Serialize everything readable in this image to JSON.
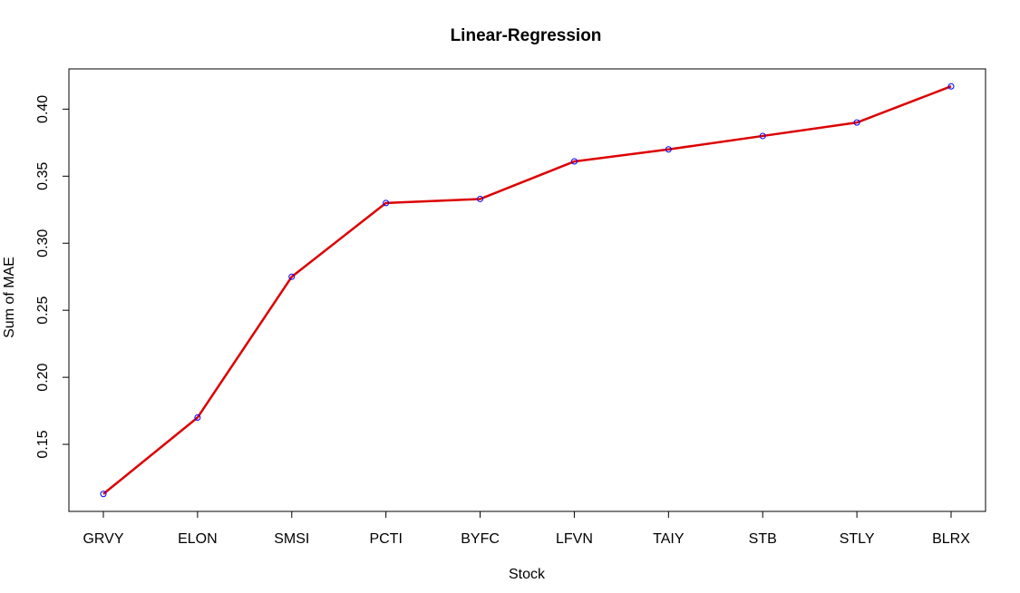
{
  "chart_data": {
    "type": "line",
    "title": "Linear-Regression",
    "xlabel": "Stock",
    "ylabel": "Sum of MAE",
    "categories": [
      "GRVY",
      "ELON",
      "SMSI",
      "PCTI",
      "BYFC",
      "LFVN",
      "TAIY",
      "STB",
      "STLY",
      "BLRX"
    ],
    "series": [
      {
        "values": [
          0.113,
          0.17,
          0.275,
          0.33,
          0.333,
          0.361,
          0.37,
          0.38,
          0.39,
          0.417
        ]
      }
    ],
    "ylim": [
      0.1,
      0.43
    ],
    "yticks": [
      "0.15",
      "0.20",
      "0.25",
      "0.30",
      "0.35",
      "0.40"
    ],
    "grid": false,
    "legend": "none",
    "colors": {
      "line": "#dd0000",
      "point": "#0000ff",
      "frame": "#000000"
    }
  }
}
